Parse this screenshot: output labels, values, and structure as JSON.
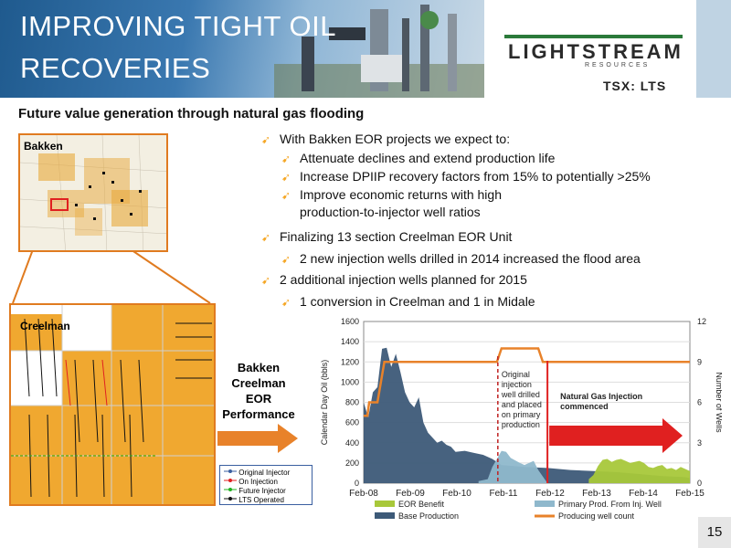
{
  "header": {
    "title_line1": "IMPROVING TIGHT OIL",
    "title_line2": "RECOVERIES",
    "logo_text": "LIGHTSTREAM",
    "logo_sub": "RESOURCES",
    "ticker": "TSX: LTS"
  },
  "subtitle": "Future value generation through natural gas flooding",
  "bullets": [
    {
      "level": 1,
      "text": "With Bakken EOR projects we expect to:"
    },
    {
      "level": 2,
      "text": "Attenuate declines and extend production life"
    },
    {
      "level": 2,
      "text": "Increase DPIIP recovery factors from 15% to potentially >25%"
    },
    {
      "level": 2,
      "text": "Improve economic returns with high"
    },
    {
      "level": 3,
      "text": "production-to-injector well ratios"
    },
    {
      "level": 1,
      "text": "Finalizing 13 section Creelman EOR Unit"
    },
    {
      "level": 2,
      "text": "2 new injection wells drilled in 2014 increased the flood area"
    },
    {
      "level": 1,
      "text": "2 additional injection wells planned for 2015"
    },
    {
      "level": 2,
      "text": "1 conversion in Creelman and 1 in Midale"
    }
  ],
  "maps": {
    "bakken_label": "Bakken",
    "creelman_label": "Creelman",
    "legend": [
      {
        "label": "Original Injector",
        "color": "#3a5fa0"
      },
      {
        "label": "On Injection",
        "color": "#e02020"
      },
      {
        "label": "Future Injector",
        "color": "#20b020"
      },
      {
        "label": "LTS Operated",
        "color": "#111111"
      }
    ]
  },
  "perf_label": {
    "l1": "Bakken",
    "l2": "Creelman",
    "l3": "EOR",
    "l4": "Performance"
  },
  "chart_data": {
    "type": "area",
    "x_labels": [
      "Feb-08",
      "Feb-09",
      "Feb-10",
      "Feb-11",
      "Feb-12",
      "Feb-13",
      "Feb-14",
      "Feb-15"
    ],
    "ylabel": "Calendar Day Oil (bbls)",
    "y2label": "Number of Wells",
    "ylim": [
      0,
      1600
    ],
    "y_ticks": [
      "0",
      "200",
      "400",
      "600",
      "800",
      "1000",
      "1200",
      "1400",
      "1600"
    ],
    "y2lim": [
      0,
      12
    ],
    "y2_ticks": [
      "0",
      "3",
      "6",
      "9",
      "12"
    ],
    "series": [
      {
        "name": "EOR Benefit",
        "color": "#a8c83a",
        "x": [
          2012.9,
          2013.0,
          2013.1,
          2013.2,
          2013.3,
          2013.4,
          2013.5,
          2013.6,
          2013.7,
          2013.8,
          2013.9,
          2014.0,
          2014.1,
          2014.2,
          2014.3,
          2014.4,
          2014.5,
          2014.6,
          2014.7,
          2014.8,
          2014.9,
          2015.0,
          2015.1
        ],
        "values": [
          40,
          80,
          170,
          230,
          240,
          210,
          230,
          240,
          220,
          200,
          210,
          220,
          200,
          160,
          150,
          170,
          180,
          140,
          150,
          130,
          160,
          140,
          120
        ]
      },
      {
        "name": "Primary Prod. From Inj. Well",
        "color": "#8fb8cc",
        "x": [
          2010.5,
          2010.7,
          2010.8,
          2011.0,
          2011.1,
          2011.2,
          2011.4,
          2011.5,
          2011.6,
          2011.7,
          2011.8,
          2012.0
        ],
        "values": [
          20,
          40,
          160,
          320,
          310,
          250,
          200,
          180,
          200,
          220,
          130,
          0
        ]
      },
      {
        "name": "Base Production",
        "color": "#3d5a78",
        "x": [
          2008.0,
          2008.1,
          2008.2,
          2008.3,
          2008.4,
          2008.5,
          2008.6,
          2008.7,
          2008.8,
          2008.9,
          2009.0,
          2009.1,
          2009.2,
          2009.3,
          2009.4,
          2009.5,
          2009.6,
          2009.7,
          2009.8,
          2009.9,
          2010.0,
          2010.2,
          2010.4,
          2010.6,
          2010.8,
          2011.0,
          2011.5,
          2012.0,
          2012.5,
          2013.0,
          2013.5,
          2014.0,
          2014.5,
          2015.0,
          2015.1
        ],
        "values": [
          800,
          650,
          900,
          950,
          1330,
          1340,
          1150,
          1280,
          1100,
          900,
          800,
          750,
          850,
          600,
          500,
          450,
          400,
          420,
          380,
          360,
          310,
          320,
          300,
          280,
          240,
          180,
          160,
          150,
          130,
          120,
          110,
          90,
          70,
          60,
          50
        ]
      },
      {
        "name": "Producing well count",
        "color": "#e8822a",
        "axis": "y2",
        "x": [
          2008.0,
          2008.08,
          2008.12,
          2008.3,
          2008.45,
          2010.9,
          2011.0,
          2011.8,
          2011.9,
          2015.1
        ],
        "values": [
          5,
          5,
          6,
          6,
          9,
          9,
          10,
          10,
          9,
          9
        ]
      }
    ],
    "annotations": [
      {
        "text": [
          "Original",
          "injection",
          "well drilled",
          "and placed",
          "on primary",
          "production"
        ],
        "x": 2010.92
      },
      {
        "text": [
          "Natural Gas Injection",
          "commenced"
        ],
        "x": 2012.0
      }
    ]
  },
  "page_number": "15"
}
